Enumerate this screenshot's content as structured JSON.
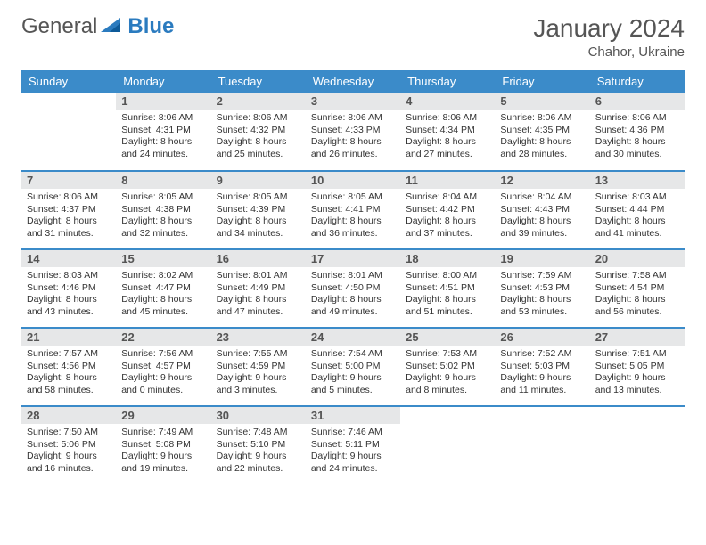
{
  "brand": {
    "text1": "General",
    "text2": "Blue"
  },
  "title": "January 2024",
  "location": "Chahor, Ukraine",
  "header_bg": "#3b8bc9",
  "header_fg": "#ffffff",
  "daynum_bg": "#e6e7e8",
  "daynames": [
    "Sunday",
    "Monday",
    "Tuesday",
    "Wednesday",
    "Thursday",
    "Friday",
    "Saturday"
  ],
  "weeks": [
    [
      null,
      {
        "n": "1",
        "sr": "8:06 AM",
        "ss": "4:31 PM",
        "dl": "8 hours and 24 minutes."
      },
      {
        "n": "2",
        "sr": "8:06 AM",
        "ss": "4:32 PM",
        "dl": "8 hours and 25 minutes."
      },
      {
        "n": "3",
        "sr": "8:06 AM",
        "ss": "4:33 PM",
        "dl": "8 hours and 26 minutes."
      },
      {
        "n": "4",
        "sr": "8:06 AM",
        "ss": "4:34 PM",
        "dl": "8 hours and 27 minutes."
      },
      {
        "n": "5",
        "sr": "8:06 AM",
        "ss": "4:35 PM",
        "dl": "8 hours and 28 minutes."
      },
      {
        "n": "6",
        "sr": "8:06 AM",
        "ss": "4:36 PM",
        "dl": "8 hours and 30 minutes."
      }
    ],
    [
      {
        "n": "7",
        "sr": "8:06 AM",
        "ss": "4:37 PM",
        "dl": "8 hours and 31 minutes."
      },
      {
        "n": "8",
        "sr": "8:05 AM",
        "ss": "4:38 PM",
        "dl": "8 hours and 32 minutes."
      },
      {
        "n": "9",
        "sr": "8:05 AM",
        "ss": "4:39 PM",
        "dl": "8 hours and 34 minutes."
      },
      {
        "n": "10",
        "sr": "8:05 AM",
        "ss": "4:41 PM",
        "dl": "8 hours and 36 minutes."
      },
      {
        "n": "11",
        "sr": "8:04 AM",
        "ss": "4:42 PM",
        "dl": "8 hours and 37 minutes."
      },
      {
        "n": "12",
        "sr": "8:04 AM",
        "ss": "4:43 PM",
        "dl": "8 hours and 39 minutes."
      },
      {
        "n": "13",
        "sr": "8:03 AM",
        "ss": "4:44 PM",
        "dl": "8 hours and 41 minutes."
      }
    ],
    [
      {
        "n": "14",
        "sr": "8:03 AM",
        "ss": "4:46 PM",
        "dl": "8 hours and 43 minutes."
      },
      {
        "n": "15",
        "sr": "8:02 AM",
        "ss": "4:47 PM",
        "dl": "8 hours and 45 minutes."
      },
      {
        "n": "16",
        "sr": "8:01 AM",
        "ss": "4:49 PM",
        "dl": "8 hours and 47 minutes."
      },
      {
        "n": "17",
        "sr": "8:01 AM",
        "ss": "4:50 PM",
        "dl": "8 hours and 49 minutes."
      },
      {
        "n": "18",
        "sr": "8:00 AM",
        "ss": "4:51 PM",
        "dl": "8 hours and 51 minutes."
      },
      {
        "n": "19",
        "sr": "7:59 AM",
        "ss": "4:53 PM",
        "dl": "8 hours and 53 minutes."
      },
      {
        "n": "20",
        "sr": "7:58 AM",
        "ss": "4:54 PM",
        "dl": "8 hours and 56 minutes."
      }
    ],
    [
      {
        "n": "21",
        "sr": "7:57 AM",
        "ss": "4:56 PM",
        "dl": "8 hours and 58 minutes."
      },
      {
        "n": "22",
        "sr": "7:56 AM",
        "ss": "4:57 PM",
        "dl": "9 hours and 0 minutes."
      },
      {
        "n": "23",
        "sr": "7:55 AM",
        "ss": "4:59 PM",
        "dl": "9 hours and 3 minutes."
      },
      {
        "n": "24",
        "sr": "7:54 AM",
        "ss": "5:00 PM",
        "dl": "9 hours and 5 minutes."
      },
      {
        "n": "25",
        "sr": "7:53 AM",
        "ss": "5:02 PM",
        "dl": "9 hours and 8 minutes."
      },
      {
        "n": "26",
        "sr": "7:52 AM",
        "ss": "5:03 PM",
        "dl": "9 hours and 11 minutes."
      },
      {
        "n": "27",
        "sr": "7:51 AM",
        "ss": "5:05 PM",
        "dl": "9 hours and 13 minutes."
      }
    ],
    [
      {
        "n": "28",
        "sr": "7:50 AM",
        "ss": "5:06 PM",
        "dl": "9 hours and 16 minutes."
      },
      {
        "n": "29",
        "sr": "7:49 AM",
        "ss": "5:08 PM",
        "dl": "9 hours and 19 minutes."
      },
      {
        "n": "30",
        "sr": "7:48 AM",
        "ss": "5:10 PM",
        "dl": "9 hours and 22 minutes."
      },
      {
        "n": "31",
        "sr": "7:46 AM",
        "ss": "5:11 PM",
        "dl": "9 hours and 24 minutes."
      },
      null,
      null,
      null
    ]
  ],
  "labels": {
    "sunrise": "Sunrise:",
    "sunset": "Sunset:",
    "daylight": "Daylight:"
  }
}
